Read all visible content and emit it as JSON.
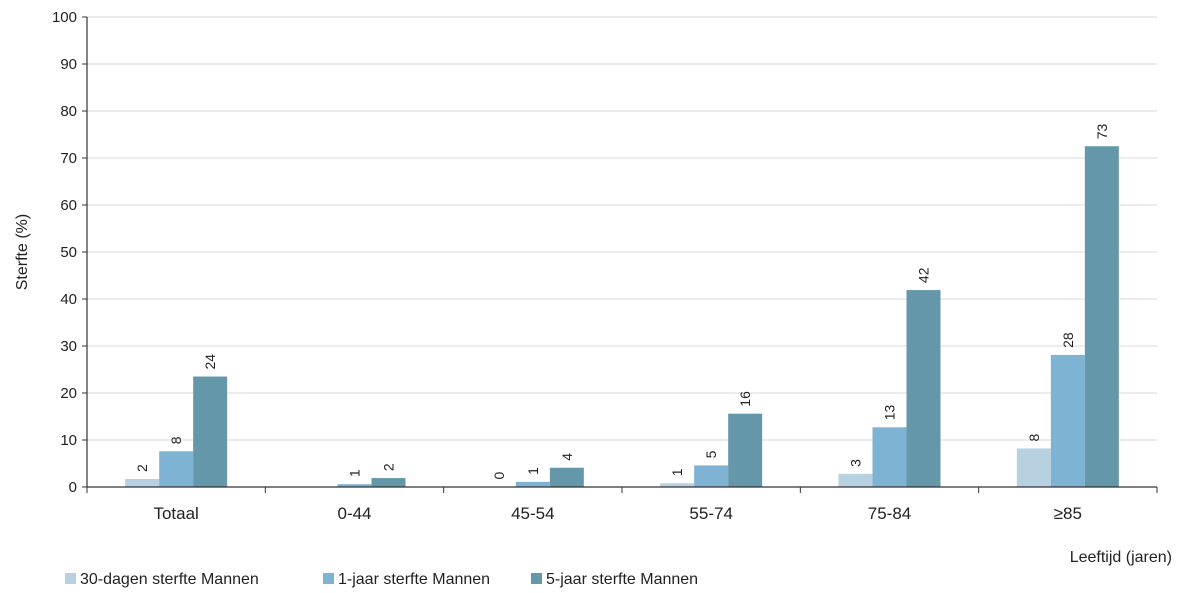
{
  "chart_data": {
    "type": "bar",
    "title": "",
    "xlabel": "Leeftijd (jaren)",
    "ylabel": "Sterfte (%)",
    "ylim": [
      0,
      100
    ],
    "yticks": [
      0,
      10,
      20,
      30,
      40,
      50,
      60,
      70,
      80,
      90,
      100
    ],
    "grid": true,
    "legend_position": "bottom-left",
    "categories": [
      "Totaal",
      "0-44",
      "45-54",
      "55-74",
      "75-84",
      "≥85"
    ],
    "series": [
      {
        "name": "30-dagen sterfte Mannen",
        "color": "#b7d1e0",
        "values": [
          1.7,
          null,
          0.1,
          0.8,
          2.8,
          8.2
        ],
        "labels": [
          "2",
          "",
          "0",
          "1",
          "3",
          "8"
        ]
      },
      {
        "name": "1-jaar sterfte Mannen",
        "color": "#7fb3d3",
        "values": [
          7.6,
          0.6,
          1.1,
          4.6,
          12.7,
          28.1
        ],
        "labels": [
          "8",
          "1",
          "1",
          "5",
          "13",
          "28"
        ]
      },
      {
        "name": "5-jaar sterfte Mannen",
        "color": "#6497aa",
        "values": [
          23.5,
          1.9,
          4.1,
          15.6,
          41.9,
          72.5
        ],
        "labels": [
          "24",
          "2",
          "4",
          "16",
          "42",
          "73"
        ]
      }
    ]
  }
}
